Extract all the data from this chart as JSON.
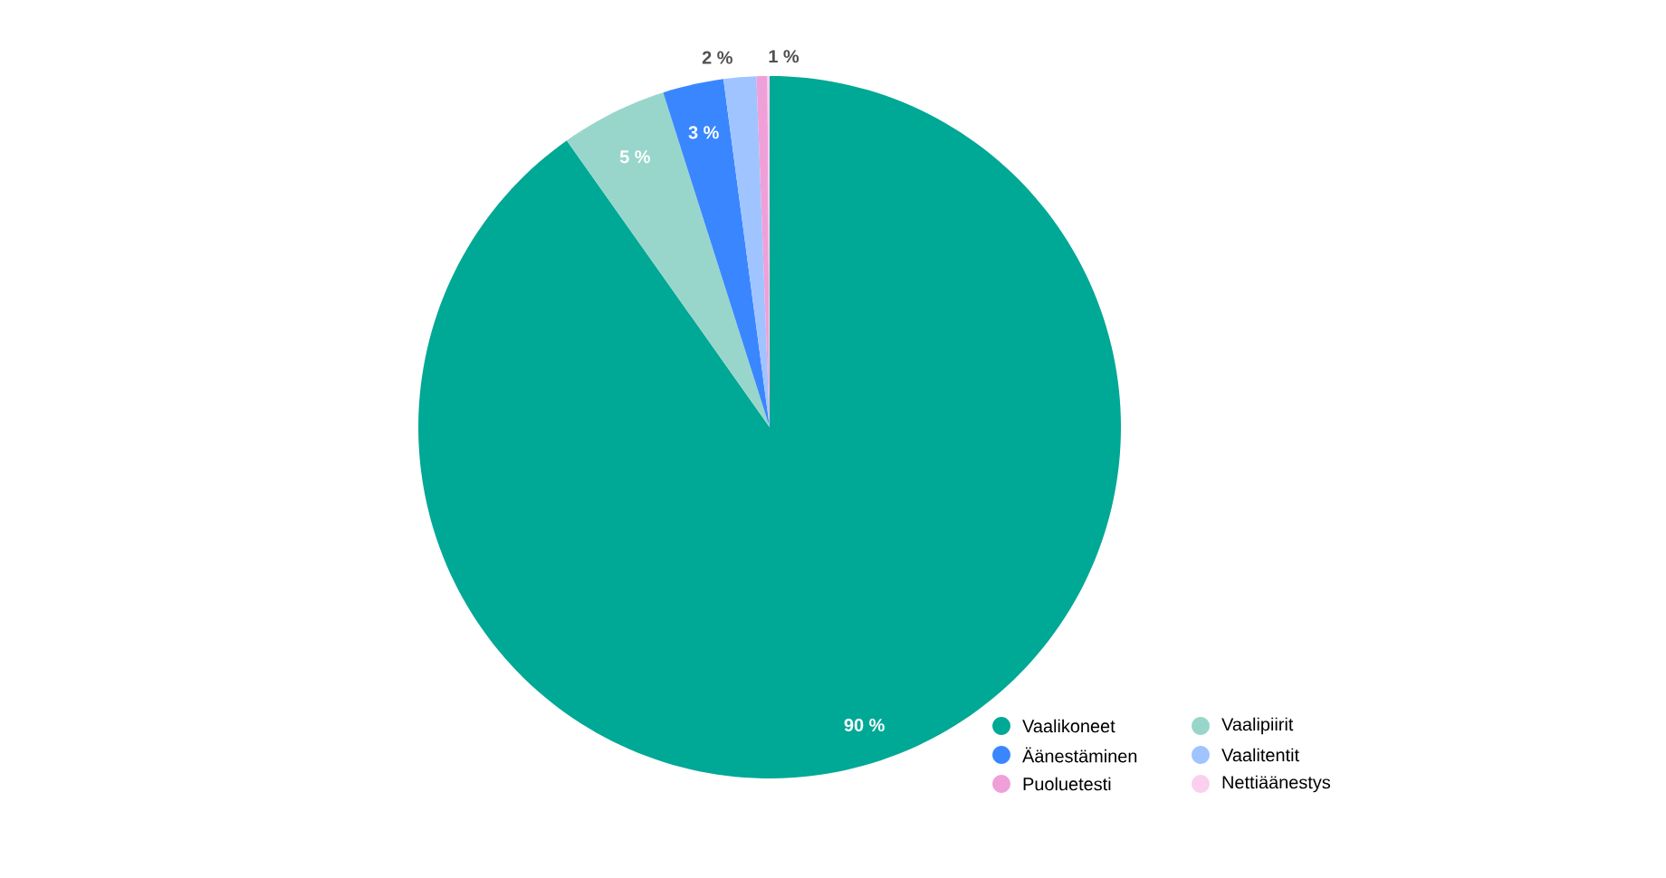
{
  "chart_data": {
    "type": "pie",
    "categories": [
      "Vaalikoneet",
      "Vaalipiirit",
      "Äänestäminen",
      "Vaalitentit",
      "Puoluetesti",
      "Nettiäänestys"
    ],
    "values": [
      90.2,
      4.9,
      2.8,
      1.5,
      0.5,
      0.1
    ],
    "colors": [
      "#00a896",
      "#98d6cb",
      "#3a86ff",
      "#a0c4ff",
      "#f0a0d8",
      "#fbd0ee"
    ],
    "value_labels": [
      "90 %",
      "5 %",
      "3 %",
      "2 %",
      "1 %",
      null
    ],
    "legend": "bottom right"
  }
}
